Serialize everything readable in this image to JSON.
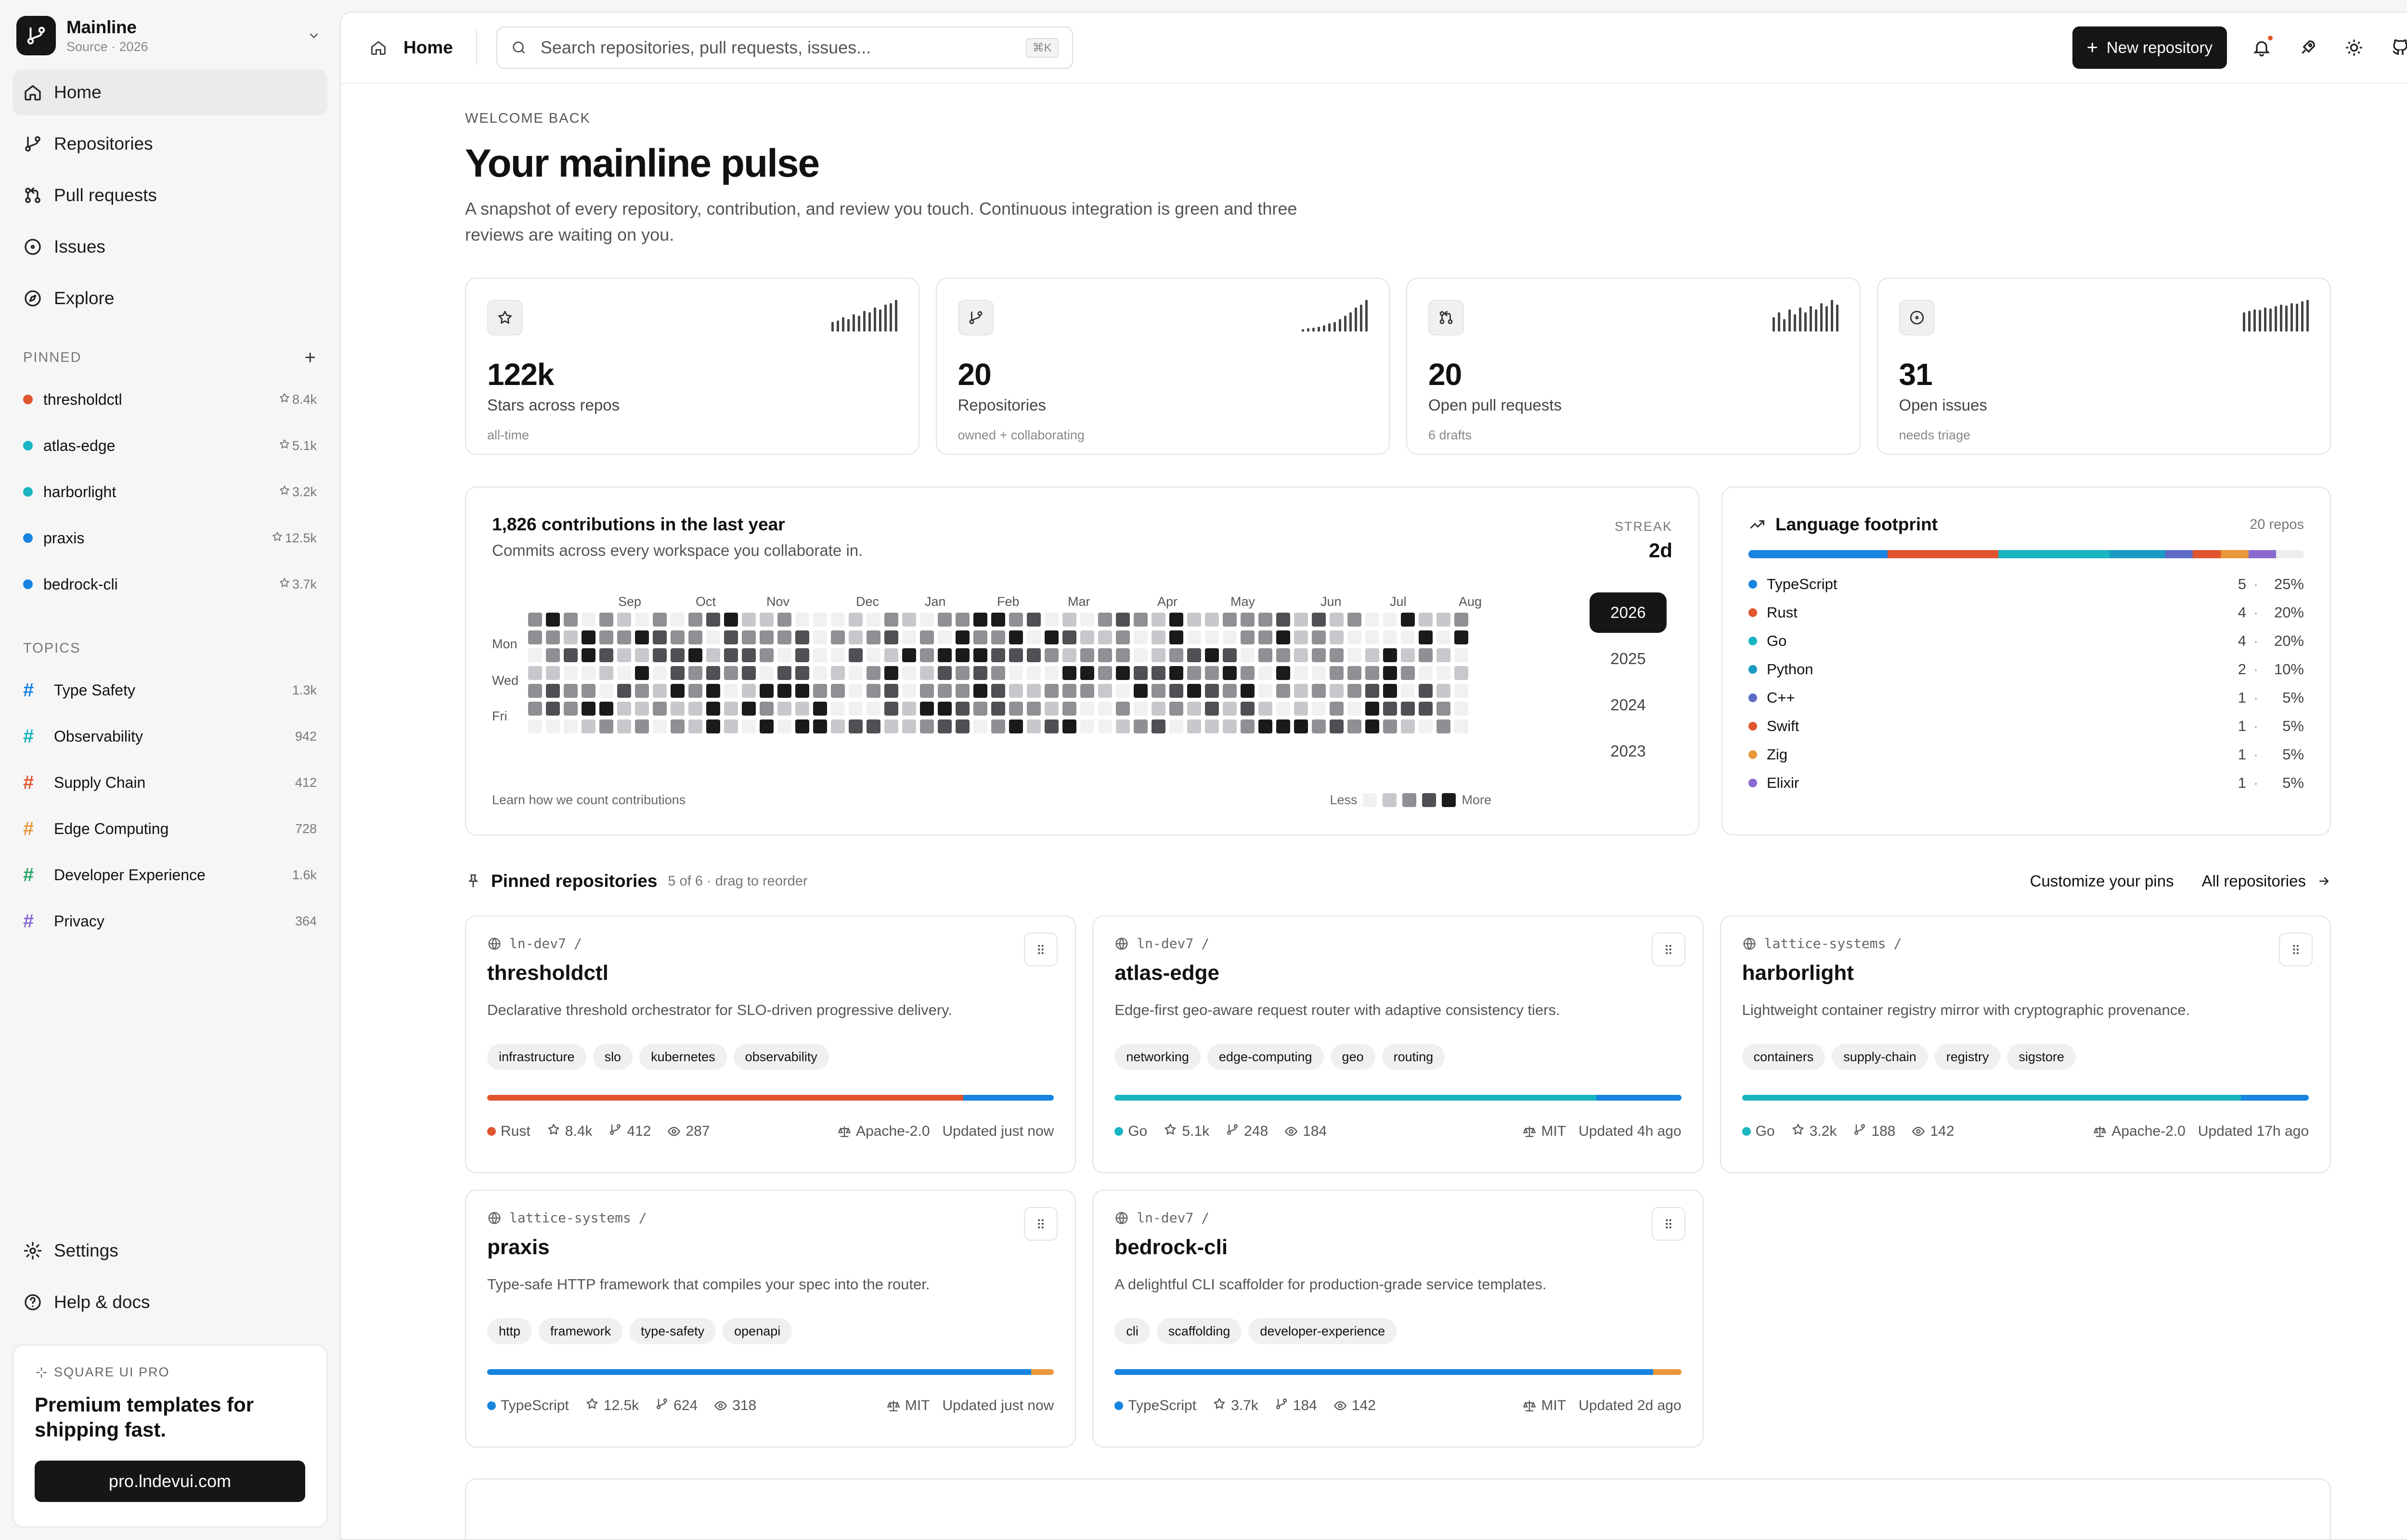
{
  "brand": {
    "name": "Mainline",
    "sub": "Source · 2026"
  },
  "nav": [
    {
      "label": "Home",
      "icon": "home-icon",
      "active": true
    },
    {
      "label": "Repositories",
      "icon": "branch-icon"
    },
    {
      "label": "Pull requests",
      "icon": "pull-request-icon"
    },
    {
      "label": "Issues",
      "icon": "issue-icon"
    },
    {
      "label": "Explore",
      "icon": "compass-icon"
    }
  ],
  "pinned": {
    "heading": "PINNED",
    "items": [
      {
        "name": "thresholdctl",
        "stars": "8.4k",
        "color": "#e0542f"
      },
      {
        "name": "atlas-edge",
        "stars": "5.1k",
        "color": "#19b5c0"
      },
      {
        "name": "harborlight",
        "stars": "3.2k",
        "color": "#19b5c0"
      },
      {
        "name": "praxis",
        "stars": "12.5k",
        "color": "#1784e0"
      },
      {
        "name": "bedrock-cli",
        "stars": "3.7k",
        "color": "#1784e0"
      }
    ]
  },
  "topics": {
    "heading": "TOPICS",
    "items": [
      {
        "name": "Type Safety",
        "count": "1.3k",
        "color": "#1784e0"
      },
      {
        "name": "Observability",
        "count": "942",
        "color": "#19b5c0"
      },
      {
        "name": "Supply Chain",
        "count": "412",
        "color": "#e0542f"
      },
      {
        "name": "Edge Computing",
        "count": "728",
        "color": "#e8983a"
      },
      {
        "name": "Developer Experience",
        "count": "1.6k",
        "color": "#2aa56a"
      },
      {
        "name": "Privacy",
        "count": "364",
        "color": "#8a6ad0"
      }
    ]
  },
  "bottom_nav": [
    {
      "label": "Settings",
      "icon": "gear-icon"
    },
    {
      "label": "Help & docs",
      "icon": "help-icon"
    }
  ],
  "promo": {
    "tag": "SQUARE UI PRO",
    "title": "Premium templates for shipping fast.",
    "button": "pro.lndevui.com"
  },
  "topbar": {
    "crumb": "Home",
    "search_placeholder": "Search repositories, pull requests, issues...",
    "kbd": "⌘K",
    "new_button": "New repository"
  },
  "header": {
    "eyebrow": "WELCOME BACK",
    "title": "Your mainline pulse",
    "desc": "A snapshot of every repository, contribution, and review you touch. Continuous integration is green and three reviews are waiting on you."
  },
  "stats": [
    {
      "icon": "star-icon",
      "value": "122k",
      "label": "Stars across repos",
      "sub": "all-time",
      "spark": [
        0.3,
        0.35,
        0.45,
        0.4,
        0.55,
        0.5,
        0.65,
        0.6,
        0.75,
        0.7,
        0.85,
        0.9,
        1.0
      ]
    },
    {
      "icon": "branch-icon",
      "value": "20",
      "label": "Repositories",
      "sub": "owned + collaborating",
      "spark": [
        0.08,
        0.1,
        0.12,
        0.15,
        0.2,
        0.25,
        0.3,
        0.4,
        0.5,
        0.6,
        0.75,
        0.85,
        1.0
      ]
    },
    {
      "icon": "pull-request-icon",
      "value": "20",
      "label": "Open pull requests",
      "sub": "6 drafts",
      "spark": [
        0.45,
        0.6,
        0.4,
        0.7,
        0.55,
        0.75,
        0.6,
        0.8,
        0.7,
        0.9,
        0.8,
        1.0,
        0.85
      ]
    },
    {
      "icon": "issue-icon",
      "value": "31",
      "label": "Open issues",
      "sub": "needs triage",
      "spark": [
        0.6,
        0.65,
        0.7,
        0.68,
        0.75,
        0.72,
        0.8,
        0.85,
        0.82,
        0.9,
        0.88,
        0.95,
        1.0
      ]
    }
  ],
  "contributions": {
    "title": "1,826 contributions in the last year",
    "subtitle": "Commits across every workspace you collaborate in.",
    "streak_label": "STREAK",
    "streak_value": "2d",
    "months": [
      "Sep",
      "Oct",
      "Nov",
      "Dec",
      "Jan",
      "Feb",
      "Mar",
      "Apr",
      "May",
      "Jun",
      "Jul",
      "Aug"
    ],
    "days": [
      "Mon",
      "Wed",
      "Fri"
    ],
    "years": [
      "2026",
      "2025",
      "2024",
      "2023"
    ],
    "active_year": "2026",
    "footer_link": "Learn how we count contributions",
    "less": "Less",
    "more": "More",
    "scale": [
      "#f1f1f3",
      "#c8c8cc",
      "#8f8f94",
      "#4f4f54",
      "#1a1a1c"
    ]
  },
  "languages": {
    "title": "Language footprint",
    "count": "20 repos",
    "items": [
      {
        "name": "TypeScript",
        "count": "5",
        "pct": "25%",
        "share": 25,
        "color": "#1784e0"
      },
      {
        "name": "Rust",
        "count": "4",
        "pct": "20%",
        "share": 20,
        "color": "#e0542f"
      },
      {
        "name": "Go",
        "count": "4",
        "pct": "20%",
        "share": 20,
        "color": "#19b5c0"
      },
      {
        "name": "Python",
        "count": "2",
        "pct": "10%",
        "share": 10,
        "color": "#1a9bc4"
      },
      {
        "name": "C++",
        "count": "1",
        "pct": "5%",
        "share": 5,
        "color": "#5d6bc4"
      },
      {
        "name": "Swift",
        "count": "1",
        "pct": "5%",
        "share": 5,
        "color": "#e0542f"
      },
      {
        "name": "Zig",
        "count": "1",
        "pct": "5%",
        "share": 5,
        "color": "#e8983a"
      },
      {
        "name": "Elixir",
        "count": "1",
        "pct": "5%",
        "share": 5,
        "color": "#8a6ad0"
      }
    ]
  },
  "pins_section": {
    "title": "Pinned repositories",
    "sub": "5 of 6 · drag to reorder",
    "customize": "Customize your pins",
    "all": "All repositories"
  },
  "repos": [
    {
      "owner": "ln-dev7",
      "name": "thresholdctl",
      "desc": "Declarative threshold orchestrator for SLO-driven progressive delivery.",
      "tags": [
        "infrastructure",
        "slo",
        "kubernetes",
        "observability"
      ],
      "lang": "Rust",
      "lang_color": "#e0542f",
      "bar": [
        {
          "c": "#e0542f",
          "v": 84
        },
        {
          "c": "#1784e0",
          "v": 16
        }
      ],
      "stars": "8.4k",
      "forks": "412",
      "watch": "287",
      "license": "Apache-2.0",
      "updated": "Updated just now"
    },
    {
      "owner": "ln-dev7",
      "name": "atlas-edge",
      "desc": "Edge-first geo-aware request router with adaptive consistency tiers.",
      "tags": [
        "networking",
        "edge-computing",
        "geo",
        "routing"
      ],
      "lang": "Go",
      "lang_color": "#19b5c0",
      "bar": [
        {
          "c": "#19b5c0",
          "v": 85
        },
        {
          "c": "#1784e0",
          "v": 15
        }
      ],
      "stars": "5.1k",
      "forks": "248",
      "watch": "184",
      "license": "MIT",
      "updated": "Updated 4h ago"
    },
    {
      "owner": "lattice-systems",
      "name": "harborlight",
      "desc": "Lightweight container registry mirror with cryptographic provenance.",
      "tags": [
        "containers",
        "supply-chain",
        "registry",
        "sigstore"
      ],
      "lang": "Go",
      "lang_color": "#19b5c0",
      "bar": [
        {
          "c": "#19b5c0",
          "v": 88
        },
        {
          "c": "#1784e0",
          "v": 12
        }
      ],
      "stars": "3.2k",
      "forks": "188",
      "watch": "142",
      "license": "Apache-2.0",
      "updated": "Updated 17h ago"
    },
    {
      "owner": "lattice-systems",
      "name": "praxis",
      "desc": "Type-safe HTTP framework that compiles your spec into the router.",
      "tags": [
        "http",
        "framework",
        "type-safety",
        "openapi"
      ],
      "lang": "TypeScript",
      "lang_color": "#1784e0",
      "bar": [
        {
          "c": "#1784e0",
          "v": 96
        },
        {
          "c": "#e8983a",
          "v": 4
        }
      ],
      "stars": "12.5k",
      "forks": "624",
      "watch": "318",
      "license": "MIT",
      "updated": "Updated just now"
    },
    {
      "owner": "ln-dev7",
      "name": "bedrock-cli",
      "desc": "A delightful CLI scaffolder for production-grade service templates.",
      "tags": [
        "cli",
        "scaffolding",
        "developer-experience"
      ],
      "lang": "TypeScript",
      "lang_color": "#1784e0",
      "bar": [
        {
          "c": "#1784e0",
          "v": 95
        },
        {
          "c": "#e8983a",
          "v": 5
        }
      ],
      "stars": "3.7k",
      "forks": "184",
      "watch": "142",
      "license": "MIT",
      "updated": "Updated 2d ago"
    }
  ]
}
